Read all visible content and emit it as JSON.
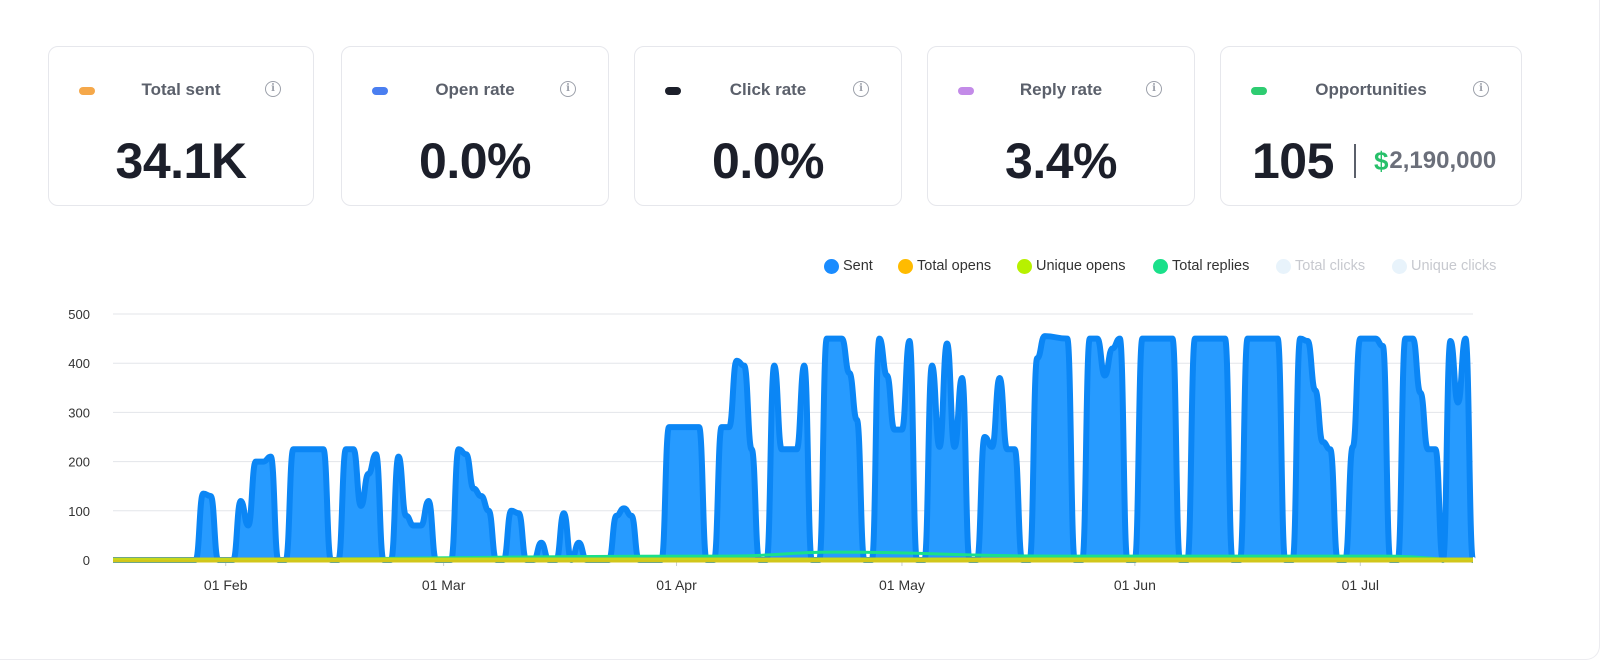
{
  "cards": [
    {
      "key": "sent",
      "title": "Total sent",
      "value": "34.1K",
      "swatch_color": "#f5a84a",
      "info_icon": "info-icon"
    },
    {
      "key": "open",
      "title": "Open rate",
      "value": "0.0%",
      "swatch_color": "#4a7ef0",
      "info_icon": "info-icon"
    },
    {
      "key": "click",
      "title": "Click rate",
      "value": "0.0%",
      "swatch_color": "#1c1f2a",
      "info_icon": "info-icon"
    },
    {
      "key": "reply",
      "title": "Reply rate",
      "value": "3.4%",
      "swatch_color": "#c38be8",
      "info_icon": "info-icon"
    },
    {
      "key": "opp",
      "title": "Opportunities",
      "count": "105",
      "currency": "$",
      "amount": "2,190,000",
      "swatch_color": "#2ecc71",
      "info_icon": "info-icon"
    }
  ],
  "legend": [
    {
      "label": "Sent",
      "color": "#1a8cff",
      "active": true
    },
    {
      "label": "Total opens",
      "color": "#ffbb00",
      "active": true
    },
    {
      "label": "Unique opens",
      "color": "#b7f100",
      "active": true
    },
    {
      "label": "Total replies",
      "color": "#1ae08a",
      "active": true
    },
    {
      "label": "Total clicks",
      "color": "#e8f3fb",
      "active": false
    },
    {
      "label": "Unique clicks",
      "color": "#e8f3fb",
      "active": false
    }
  ],
  "chart_data": {
    "type": "area",
    "ylim": [
      0,
      500
    ],
    "yticks": [
      0,
      100,
      200,
      300,
      400,
      500
    ],
    "xticks": [
      "01 Feb",
      "01 Mar",
      "01 Apr",
      "01 May",
      "01 Jun",
      "01 Jul"
    ],
    "xtick_dates": [
      "2024-02-01",
      "2024-03-01",
      "2024-04-01",
      "2024-05-01",
      "2024-06-01",
      "2024-07-01"
    ],
    "x_range": [
      "2024-01-17",
      "2024-07-16"
    ],
    "grid": true,
    "legend_position": "top-right",
    "series": [
      {
        "name": "Sent",
        "color": "#1a8cff",
        "points": [
          [
            "2024-01-17",
            0
          ],
          [
            "2024-01-28",
            0
          ],
          [
            "2024-01-29",
            135
          ],
          [
            "2024-01-30",
            130
          ],
          [
            "2024-01-31",
            0
          ],
          [
            "2024-02-02",
            0
          ],
          [
            "2024-02-03",
            120
          ],
          [
            "2024-02-04",
            70
          ],
          [
            "2024-02-05",
            200
          ],
          [
            "2024-02-06",
            200
          ],
          [
            "2024-02-07",
            210
          ],
          [
            "2024-02-08",
            0
          ],
          [
            "2024-02-09",
            0
          ],
          [
            "2024-02-10",
            225
          ],
          [
            "2024-02-14",
            225
          ],
          [
            "2024-02-15",
            0
          ],
          [
            "2024-02-16",
            0
          ],
          [
            "2024-02-17",
            225
          ],
          [
            "2024-02-18",
            225
          ],
          [
            "2024-02-19",
            110
          ],
          [
            "2024-02-20",
            175
          ],
          [
            "2024-02-21",
            215
          ],
          [
            "2024-02-22",
            0
          ],
          [
            "2024-02-23",
            0
          ],
          [
            "2024-02-24",
            210
          ],
          [
            "2024-02-25",
            90
          ],
          [
            "2024-02-26",
            70
          ],
          [
            "2024-02-27",
            70
          ],
          [
            "2024-02-28",
            120
          ],
          [
            "2024-02-29",
            0
          ],
          [
            "2024-03-02",
            0
          ],
          [
            "2024-03-03",
            225
          ],
          [
            "2024-03-04",
            215
          ],
          [
            "2024-03-05",
            145
          ],
          [
            "2024-03-06",
            130
          ],
          [
            "2024-03-07",
            100
          ],
          [
            "2024-03-08",
            0
          ],
          [
            "2024-03-09",
            0
          ],
          [
            "2024-03-10",
            100
          ],
          [
            "2024-03-11",
            95
          ],
          [
            "2024-03-12",
            0
          ],
          [
            "2024-03-13",
            0
          ],
          [
            "2024-03-14",
            35
          ],
          [
            "2024-03-15",
            0
          ],
          [
            "2024-03-16",
            0
          ],
          [
            "2024-03-17",
            95
          ],
          [
            "2024-03-18",
            0
          ],
          [
            "2024-03-19",
            35
          ],
          [
            "2024-03-20",
            0
          ],
          [
            "2024-03-23",
            0
          ],
          [
            "2024-03-24",
            90
          ],
          [
            "2024-03-25",
            105
          ],
          [
            "2024-03-26",
            90
          ],
          [
            "2024-03-27",
            0
          ],
          [
            "2024-03-30",
            0
          ],
          [
            "2024-03-31",
            270
          ],
          [
            "2024-04-04",
            270
          ],
          [
            "2024-04-05",
            0
          ],
          [
            "2024-04-06",
            0
          ],
          [
            "2024-04-07",
            270
          ],
          [
            "2024-04-08",
            270
          ],
          [
            "2024-04-09",
            405
          ],
          [
            "2024-04-10",
            395
          ],
          [
            "2024-04-11",
            225
          ],
          [
            "2024-04-12",
            0
          ],
          [
            "2024-04-13",
            0
          ],
          [
            "2024-04-14",
            395
          ],
          [
            "2024-04-15",
            225
          ],
          [
            "2024-04-17",
            225
          ],
          [
            "2024-04-18",
            395
          ],
          [
            "2024-04-19",
            0
          ],
          [
            "2024-04-20",
            0
          ],
          [
            "2024-04-21",
            450
          ],
          [
            "2024-04-23",
            450
          ],
          [
            "2024-04-24",
            380
          ],
          [
            "2024-04-25",
            285
          ],
          [
            "2024-04-26",
            0
          ],
          [
            "2024-04-27",
            0
          ],
          [
            "2024-04-28",
            450
          ],
          [
            "2024-04-29",
            375
          ],
          [
            "2024-04-30",
            265
          ],
          [
            "2024-05-01",
            265
          ],
          [
            "2024-05-02",
            445
          ],
          [
            "2024-05-03",
            0
          ],
          [
            "2024-05-04",
            0
          ],
          [
            "2024-05-05",
            395
          ],
          [
            "2024-05-06",
            230
          ],
          [
            "2024-05-07",
            440
          ],
          [
            "2024-05-08",
            230
          ],
          [
            "2024-05-09",
            370
          ],
          [
            "2024-05-10",
            0
          ],
          [
            "2024-05-11",
            0
          ],
          [
            "2024-05-12",
            250
          ],
          [
            "2024-05-13",
            230
          ],
          [
            "2024-05-14",
            370
          ],
          [
            "2024-05-15",
            225
          ],
          [
            "2024-05-16",
            225
          ],
          [
            "2024-05-17",
            0
          ],
          [
            "2024-05-18",
            0
          ],
          [
            "2024-05-19",
            410
          ],
          [
            "2024-05-20",
            455
          ],
          [
            "2024-05-23",
            450
          ],
          [
            "2024-05-24",
            0
          ],
          [
            "2024-05-25",
            0
          ],
          [
            "2024-05-26",
            450
          ],
          [
            "2024-05-27",
            450
          ],
          [
            "2024-05-28",
            375
          ],
          [
            "2024-05-29",
            430
          ],
          [
            "2024-05-30",
            450
          ],
          [
            "2024-05-31",
            0
          ],
          [
            "2024-06-01",
            0
          ],
          [
            "2024-06-02",
            450
          ],
          [
            "2024-06-06",
            450
          ],
          [
            "2024-06-07",
            0
          ],
          [
            "2024-06-08",
            0
          ],
          [
            "2024-06-09",
            450
          ],
          [
            "2024-06-13",
            450
          ],
          [
            "2024-06-14",
            0
          ],
          [
            "2024-06-15",
            0
          ],
          [
            "2024-06-16",
            450
          ],
          [
            "2024-06-20",
            450
          ],
          [
            "2024-06-21",
            0
          ],
          [
            "2024-06-22",
            0
          ],
          [
            "2024-06-23",
            450
          ],
          [
            "2024-06-24",
            445
          ],
          [
            "2024-06-25",
            345
          ],
          [
            "2024-06-26",
            240
          ],
          [
            "2024-06-27",
            225
          ],
          [
            "2024-06-28",
            0
          ],
          [
            "2024-06-29",
            0
          ],
          [
            "2024-06-30",
            230
          ],
          [
            "2024-07-01",
            450
          ],
          [
            "2024-07-03",
            450
          ],
          [
            "2024-07-04",
            435
          ],
          [
            "2024-07-05",
            0
          ],
          [
            "2024-07-06",
            0
          ],
          [
            "2024-07-07",
            450
          ],
          [
            "2024-07-08",
            450
          ],
          [
            "2024-07-09",
            340
          ],
          [
            "2024-07-10",
            225
          ],
          [
            "2024-07-11",
            225
          ],
          [
            "2024-07-12",
            0
          ],
          [
            "2024-07-13",
            445
          ],
          [
            "2024-07-14",
            320
          ],
          [
            "2024-07-15",
            450
          ],
          [
            "2024-07-16",
            0
          ]
        ]
      },
      {
        "name": "Total opens",
        "color": "#ffbb00",
        "points": [
          [
            "2024-01-17",
            0
          ],
          [
            "2024-07-16",
            0
          ]
        ]
      },
      {
        "name": "Unique opens",
        "color": "#b7f100",
        "points": [
          [
            "2024-01-17",
            0
          ],
          [
            "2024-07-16",
            0
          ]
        ]
      },
      {
        "name": "Total replies",
        "color": "#1ae08a",
        "points": [
          [
            "2024-01-17",
            0
          ],
          [
            "2024-04-08",
            8
          ],
          [
            "2024-04-22",
            16
          ],
          [
            "2024-05-21",
            8
          ],
          [
            "2024-07-04",
            8
          ],
          [
            "2024-07-16",
            0
          ]
        ]
      }
    ]
  }
}
